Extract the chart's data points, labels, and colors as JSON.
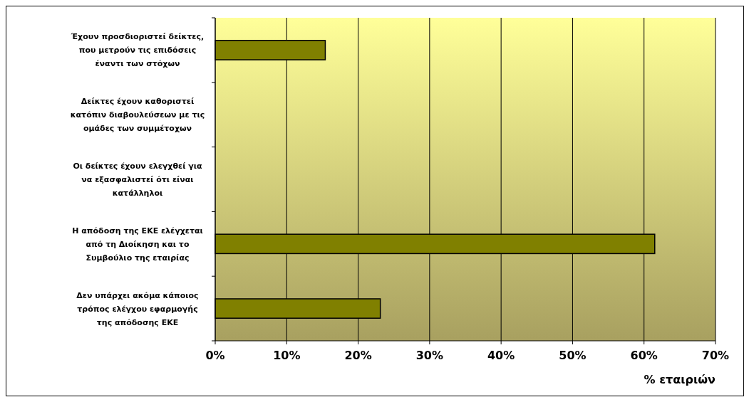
{
  "chart_data": {
    "type": "bar",
    "orientation": "horizontal",
    "xlabel": "% εταιριών",
    "categories": [
      "Έχουν προσδιοριστεί δείκτες, που μετρούν τις επιδόσεις έναντι των στόχων",
      "Δείκτες έχουν καθοριστεί κατόπιν διαβουλεύσεων με τις ομάδες των συμμέτοχων",
      "Οι δείκτες έχουν ελεγχθεί για να εξασφαλιστεί ότι είναι κατάλληλοι",
      "Η απόδοση της ΕΚΕ ελέγχεται από τη Διοίκηση και το Συμβούλιο της εταιρίας",
      "Δεν υπάρχει ακόμα κάποιος τρόπος ελέγχου εφαρμογής της απόδοσης ΕΚΕ"
    ],
    "values": [
      15.4,
      0,
      0,
      61.5,
      23.1
    ],
    "color": "#808000",
    "xlim": [
      0,
      70
    ],
    "xticks": [
      {
        "value": 0,
        "label": "0%"
      },
      {
        "value": 10,
        "label": "10%"
      },
      {
        "value": 20,
        "label": "20%"
      },
      {
        "value": 30,
        "label": "30%"
      },
      {
        "value": 40,
        "label": "40%"
      },
      {
        "value": 50,
        "label": "50%"
      },
      {
        "value": 60,
        "label": "60%"
      },
      {
        "value": 70,
        "label": "70%"
      }
    ],
    "grid": "x"
  }
}
